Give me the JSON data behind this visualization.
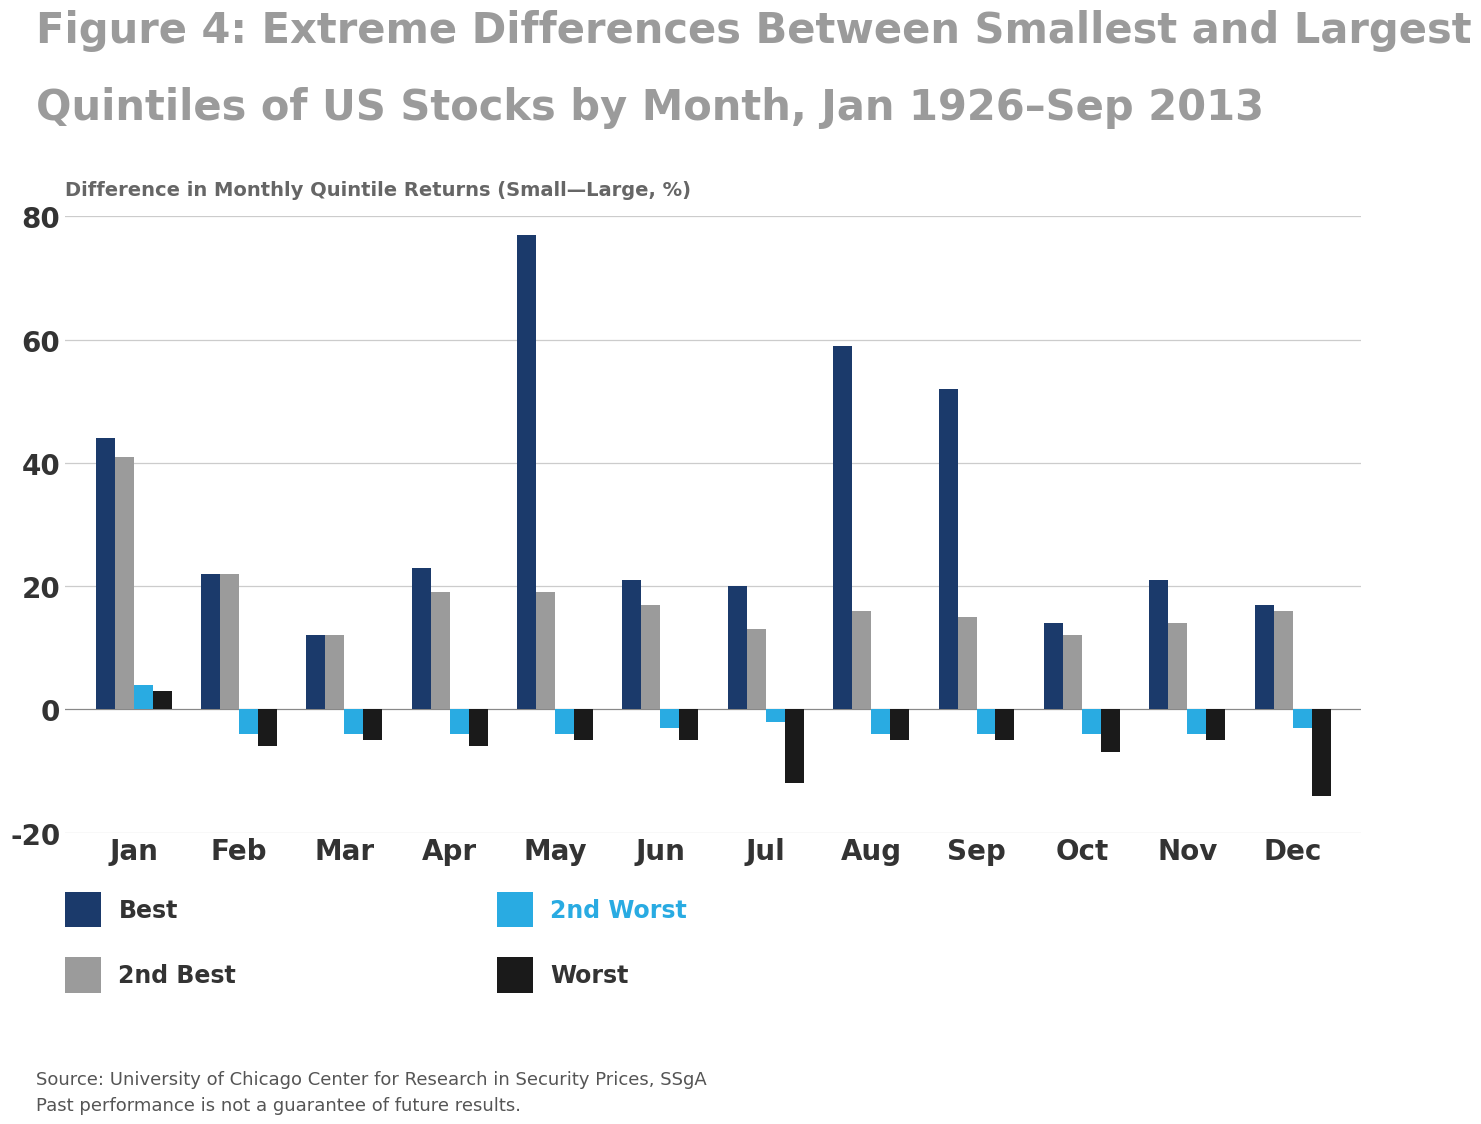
{
  "title_line1": "Figure 4: Extreme Differences Between Smallest and Largest",
  "title_line2": "Quintiles of US Stocks by Month, Jan 1926–Sep 2013",
  "ylabel": "Difference in Monthly Quintile Returns (Small—Large, %)",
  "months": [
    "Jan",
    "Feb",
    "Mar",
    "Apr",
    "May",
    "Jun",
    "Jul",
    "Aug",
    "Sep",
    "Oct",
    "Nov",
    "Dec"
  ],
  "best": [
    44,
    22,
    12,
    23,
    77,
    21,
    20,
    59,
    52,
    14,
    21,
    17
  ],
  "second_best": [
    41,
    22,
    12,
    19,
    19,
    17,
    13,
    16,
    15,
    12,
    14,
    16
  ],
  "second_worst": [
    4,
    -4,
    -4,
    -4,
    -4,
    -3,
    -2,
    -4,
    -4,
    -4,
    -4,
    -3
  ],
  "worst": [
    3,
    -6,
    -5,
    -6,
    -5,
    -5,
    -12,
    -5,
    -5,
    -7,
    -5,
    -14
  ],
  "color_best": "#1B3A6B",
  "color_second_best": "#9B9B9B",
  "color_second_worst": "#29ABE2",
  "color_worst": "#1A1A1A",
  "ylim": [
    -20,
    80
  ],
  "yticks": [
    -20,
    0,
    20,
    40,
    60,
    80
  ],
  "source_text_line1": "Source: University of Chicago Center for Research in Security Prices, SSgA",
  "source_text_line2": "Past performance is not a guarantee of future results.",
  "background_color": "#FFFFFF",
  "title_color": "#9B9B9B",
  "ylabel_color": "#666666"
}
